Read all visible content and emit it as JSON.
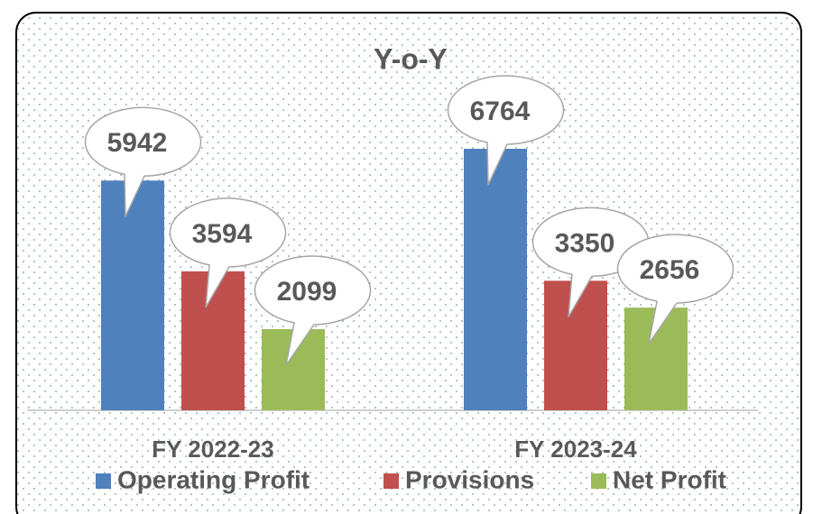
{
  "chart_data": {
    "type": "bar",
    "title": "Y-o-Y",
    "categories": [
      "FY 2022-23",
      "FY 2023-24"
    ],
    "series": [
      {
        "name": "Operating Profit",
        "color": "#4f81bd",
        "values": [
          5942,
          6764
        ]
      },
      {
        "name": "Provisions",
        "color": "#c0504d",
        "values": [
          3594,
          3350
        ]
      },
      {
        "name": "Net Profit",
        "color": "#9bbb59",
        "values": [
          2099,
          2656
        ]
      }
    ],
    "legend": "bottom"
  }
}
